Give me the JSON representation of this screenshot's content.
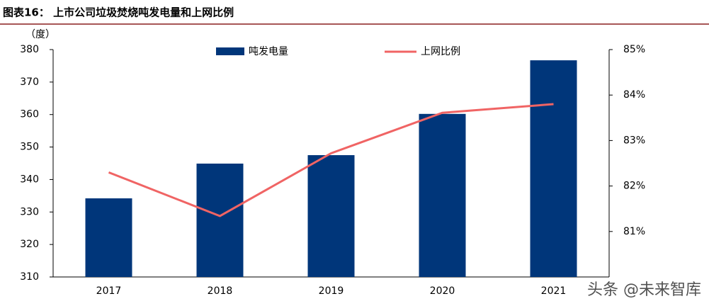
{
  "chart_data": {
    "type": "bar-line",
    "title": "图表16：  上市公司垃圾焚烧吨发电量和上网比例",
    "y_label": "（度）",
    "categories": [
      "2017",
      "2018",
      "2019",
      "2020",
      "2021"
    ],
    "series": [
      {
        "name": "吨发电量",
        "color": "#00367a",
        "type": "bar",
        "values": [
          334.2,
          344.9,
          347.5,
          360.2,
          376.7
        ]
      },
      {
        "name": "上网比例",
        "color": "#f06464",
        "type": "line",
        "axis": "y2",
        "values": [
          82.3,
          81.34,
          82.72,
          83.61,
          83.8
        ]
      }
    ],
    "ylim": [
      310,
      380
    ],
    "yticks": [
      310,
      320,
      330,
      340,
      350,
      360,
      370,
      380
    ],
    "y2lim": [
      80,
      85
    ],
    "y2ticks": [
      {
        "value": 81,
        "label": "81%"
      },
      {
        "value": 82,
        "label": "82%"
      },
      {
        "value": 83,
        "label": "83%"
      },
      {
        "value": 84,
        "label": "84%"
      },
      {
        "value": 85,
        "label": "85%"
      }
    ],
    "legend": "top",
    "watermark": "头条 @未来智库"
  }
}
